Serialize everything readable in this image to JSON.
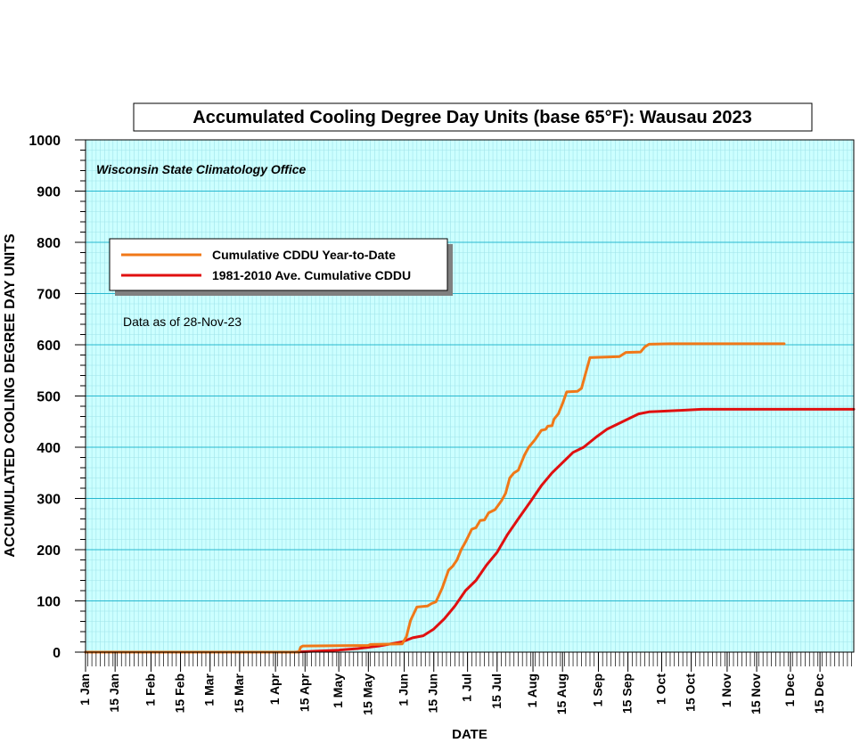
{
  "chart_data": {
    "type": "line",
    "title": "Accumulated Cooling Degree Day Units (base 65°F): Wausau 2023",
    "subtitle": "Wisconsin State Climatology Office",
    "annotation": "Data as of 28-Nov-23",
    "xlabel": "DATE",
    "ylabel": "ACCUMULATED COOLING DEGREE DAY UNITS",
    "ylim": [
      0,
      1000
    ],
    "yticks": [
      "0",
      "100",
      "200",
      "300",
      "400",
      "500",
      "600",
      "700",
      "800",
      "900",
      "1000"
    ],
    "x_unit": "date (2023)",
    "xlim": [
      "1 Jan",
      "31 Dec"
    ],
    "xticks": [
      "1 Jan",
      "15 Jan",
      "1 Feb",
      "15 Feb",
      "1 Mar",
      "15 Mar",
      "1 Apr",
      "15 Apr",
      "1 May",
      "15 May",
      "1 Jun",
      "15 Jun",
      "1 Jul",
      "15 Jul",
      "1 Aug",
      "15 Aug",
      "1 Sep",
      "15 Sep",
      "1 Oct",
      "15 Oct",
      "1 Nov",
      "15 Nov",
      "1 Dec",
      "15 Dec"
    ],
    "grid": true,
    "legend_position": "upper-left",
    "series": [
      {
        "name": "Cumulative CDDU Year-to-Date",
        "color": "#f07818",
        "points": [
          [
            "1 Jan",
            0
          ],
          [
            "12 Apr",
            0
          ],
          [
            "13 Apr",
            10
          ],
          [
            "14 Apr",
            12
          ],
          [
            "15 May",
            13
          ],
          [
            "16 May",
            15
          ],
          [
            "31 May",
            16
          ],
          [
            "2 Jun",
            30
          ],
          [
            "4 Jun",
            62
          ],
          [
            "7 Jun",
            88
          ],
          [
            "12 Jun",
            90
          ],
          [
            "14 Jun",
            95
          ],
          [
            "16 Jun",
            98
          ],
          [
            "19 Jun",
            125
          ],
          [
            "22 Jun",
            160
          ],
          [
            "24 Jun",
            168
          ],
          [
            "26 Jun",
            180
          ],
          [
            "28 Jun",
            200
          ],
          [
            "30 Jun",
            215
          ],
          [
            "3 Jul",
            240
          ],
          [
            "5 Jul",
            243
          ],
          [
            "7 Jul",
            257
          ],
          [
            "9 Jul",
            258
          ],
          [
            "11 Jul",
            272
          ],
          [
            "14 Jul",
            278
          ],
          [
            "17 Jul",
            295
          ],
          [
            "19 Jul",
            310
          ],
          [
            "21 Jul",
            340
          ],
          [
            "23 Jul",
            350
          ],
          [
            "25 Jul",
            355
          ],
          [
            "28 Jul",
            385
          ],
          [
            "30 Jul",
            400
          ],
          [
            "2 Aug",
            415
          ],
          [
            "5 Aug",
            433
          ],
          [
            "7 Aug",
            435
          ],
          [
            "8 Aug",
            441
          ],
          [
            "10 Aug",
            442
          ],
          [
            "11 Aug",
            455
          ],
          [
            "13 Aug",
            465
          ],
          [
            "15 Aug",
            485
          ],
          [
            "17 Aug",
            508
          ],
          [
            "22 Aug",
            509
          ],
          [
            "24 Aug",
            515
          ],
          [
            "28 Aug",
            575
          ],
          [
            "5 Sep",
            576
          ],
          [
            "11 Sep",
            577
          ],
          [
            "14 Sep",
            585
          ],
          [
            "21 Sep",
            586
          ],
          [
            "23 Sep",
            596
          ],
          [
            "25 Sep",
            601
          ],
          [
            "5 Oct",
            602
          ],
          [
            "28 Nov",
            602
          ]
        ]
      },
      {
        "name": "1981-2010 Ave. Cumulative CDDU",
        "color": "#e01010",
        "points": [
          [
            "1 Jan",
            0
          ],
          [
            "10 Apr",
            0
          ],
          [
            "20 Apr",
            2
          ],
          [
            "1 May",
            4
          ],
          [
            "10 May",
            7
          ],
          [
            "20 May",
            12
          ],
          [
            "31 May",
            20
          ],
          [
            "5 Jun",
            28
          ],
          [
            "10 Jun",
            32
          ],
          [
            "15 Jun",
            45
          ],
          [
            "20 Jun",
            65
          ],
          [
            "25 Jun",
            90
          ],
          [
            "30 Jun",
            120
          ],
          [
            "5 Jul",
            140
          ],
          [
            "10 Jul",
            170
          ],
          [
            "15 Jul",
            195
          ],
          [
            "20 Jul",
            230
          ],
          [
            "25 Jul",
            260
          ],
          [
            "31 Jul",
            295
          ],
          [
            "5 Aug",
            325
          ],
          [
            "10 Aug",
            350
          ],
          [
            "15 Aug",
            370
          ],
          [
            "20 Aug",
            390
          ],
          [
            "25 Aug",
            400
          ],
          [
            "31 Aug",
            420
          ],
          [
            "5 Sep",
            435
          ],
          [
            "10 Sep",
            445
          ],
          [
            "15 Sep",
            455
          ],
          [
            "20 Sep",
            465
          ],
          [
            "25 Sep",
            469
          ],
          [
            "30 Sep",
            470
          ],
          [
            "10 Oct",
            472
          ],
          [
            "20 Oct",
            474
          ],
          [
            "31 Oct",
            474
          ],
          [
            "31 Dec",
            474
          ]
        ]
      }
    ]
  }
}
